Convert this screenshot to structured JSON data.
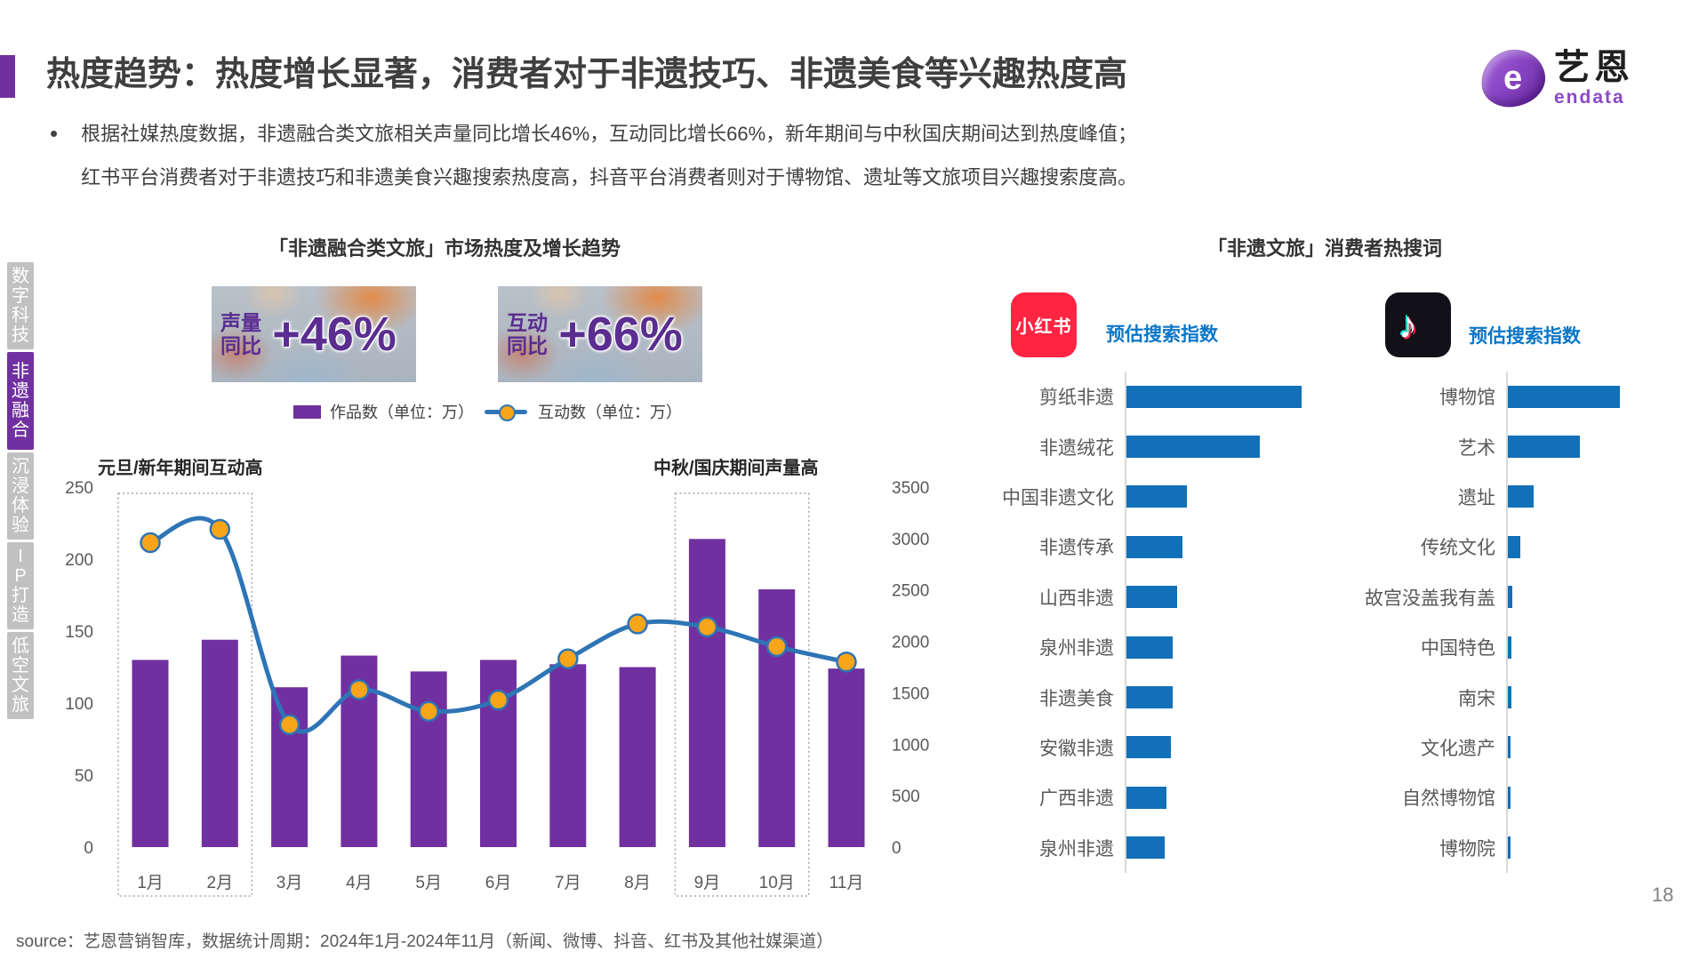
{
  "page": {
    "title": "热度趋势：热度增长显著，消费者对于非遗技巧、非遗美食等兴趣热度高",
    "bullet_line1": "根据社媒热度数据，非遗融合类文旅相关声量同比增长46%，互动同比增长66%，新年期间与中秋国庆期间达到热度峰值；",
    "bullet_line2": "红书平台消费者对于非遗技巧和非遗美食兴趣搜索热度高，抖音平台消费者则对于博物馆、遗址等文旅项目兴趣搜索度高。",
    "source": "source：艺恩营销智库，数据统计周期：2024年1月-2024年11月（新闻、微博、抖音、红书及其他社媒渠道）",
    "page_number": "18"
  },
  "logo": {
    "brand_cn": "艺恩",
    "brand_en": "endata"
  },
  "sidebar": {
    "items": [
      {
        "label": "数字科技",
        "active": false
      },
      {
        "label": "非遗融合",
        "active": true
      },
      {
        "label": "沉浸体验",
        "active": false
      },
      {
        "label": "IP打造",
        "active": false
      },
      {
        "label": "低空文旅",
        "active": false
      }
    ]
  },
  "stats": [
    {
      "label_line1": "声量",
      "label_line2": "同比",
      "value": "+46%"
    },
    {
      "label_line1": "互动",
      "label_line2": "同比",
      "value": "+66%"
    }
  ],
  "colors": {
    "accent_purple": "#7030A0",
    "bar_purple": "#7030A0",
    "line_blue": "#2E75B6",
    "dot_orange": "#F9A51A",
    "keyword_bar_blue": "#1170B8",
    "metric_label_blue": "#0B76C8",
    "xhs_red": "#FF2442",
    "axis_text_gray": "#595959"
  },
  "chart_data": [
    {
      "type": "bar",
      "subtype": "bar+line combo",
      "title": "「非遗融合类文旅」市场热度及增长趋势",
      "categories": [
        "1月",
        "2月",
        "3月",
        "4月",
        "5月",
        "6月",
        "7月",
        "8月",
        "9月",
        "10月",
        "11月"
      ],
      "series": [
        {
          "name": "作品数（单位：万）",
          "kind": "bar",
          "axis": "left",
          "values": [
            130,
            144,
            111,
            133,
            122,
            130,
            127,
            125,
            214,
            179,
            124
          ]
        },
        {
          "name": "互动数（单位：万）",
          "kind": "line",
          "axis": "right",
          "values": [
            2960,
            3090,
            1190,
            1530,
            1320,
            1430,
            1830,
            2170,
            2140,
            1950,
            1800
          ]
        }
      ],
      "left_axis": {
        "min": 0,
        "max": 250,
        "step": 50
      },
      "right_axis": {
        "min": 0,
        "max": 3500,
        "step": 500
      },
      "grid": false,
      "highlights": [
        {
          "label": "元旦/新年期间互动高",
          "from_index": 0,
          "to_index": 1
        },
        {
          "label": "中秋/国庆期间声量高",
          "from_index": 8,
          "to_index": 9
        }
      ]
    },
    {
      "type": "bar",
      "subtype": "horizontal keyword ranking",
      "title": "「非遗文旅」消费者热搜词",
      "value_note": "relative search index, no numeric axis shown",
      "columns": [
        {
          "platform": "小红书",
          "metric_label": "预估搜索指数",
          "categories": [
            "剪纸非遗",
            "非遗绒花",
            "中国非遗文化",
            "非遗传承",
            "山西非遗",
            "泉州非遗",
            "非遗美食",
            "安徽非遗",
            "广西非遗",
            "泉州非遗"
          ],
          "values": [
            197,
            150,
            68,
            63,
            57,
            52,
            52,
            50,
            45,
            43
          ]
        },
        {
          "platform": "抖音",
          "metric_label": "预估搜索指数",
          "categories": [
            "博物馆",
            "艺术",
            "遗址",
            "传统文化",
            "故宫没盖我有盖",
            "中国特色",
            "南宋",
            "文化遗产",
            "自然博物馆",
            "博物院"
          ],
          "values": [
            126,
            81,
            29,
            14,
            5,
            4,
            4,
            3,
            3,
            3
          ]
        }
      ]
    }
  ]
}
